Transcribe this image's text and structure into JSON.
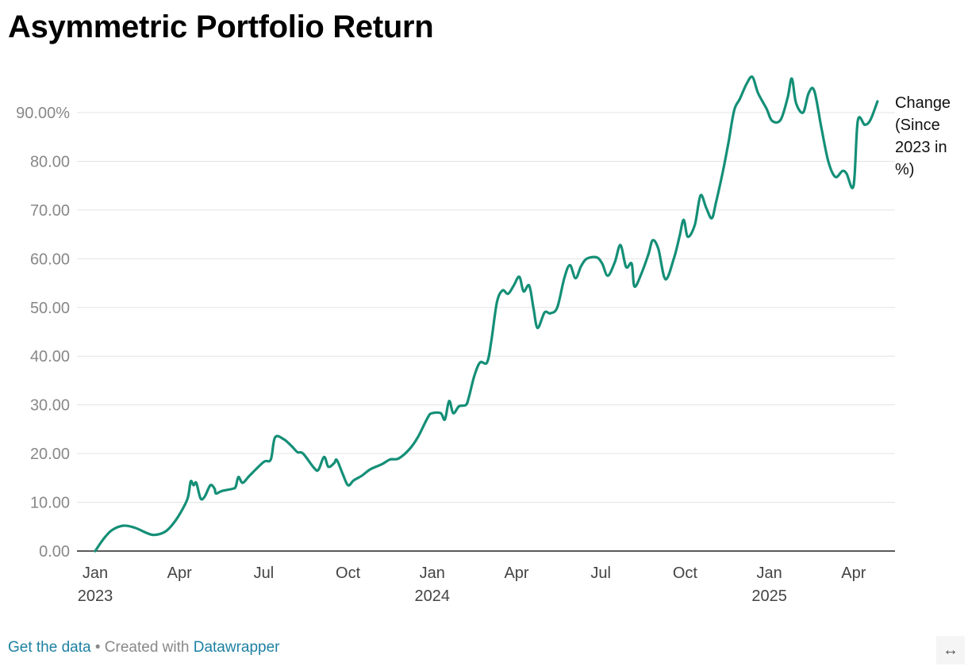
{
  "header": {
    "title": "Asymmetric Portfolio Return"
  },
  "footer": {
    "get_data": "Get the data",
    "separator": " • Created with ",
    "tool": "Datawrapper"
  },
  "expand_icon": "↔",
  "chart_data": {
    "type": "line",
    "title": "Asymmetric Portfolio Return",
    "ylabel": "",
    "xlabel": "",
    "ylim": [
      0,
      95
    ],
    "y_ticks": [
      0,
      10,
      20,
      30,
      40,
      50,
      60,
      70,
      80,
      90
    ],
    "y_tick_labels": [
      "0.00",
      "10.00",
      "20.00",
      "30.00",
      "40.00",
      "50.00",
      "60.00",
      "70.00",
      "80.00",
      "90.00%"
    ],
    "x_range": [
      0,
      28.3
    ],
    "x_unit": "months since Jan 2023",
    "x_ticks": [
      {
        "x": 0,
        "label": "Jan",
        "year": "2023"
      },
      {
        "x": 3,
        "label": "Apr",
        "year": ""
      },
      {
        "x": 6,
        "label": "Jul",
        "year": ""
      },
      {
        "x": 9,
        "label": "Oct",
        "year": ""
      },
      {
        "x": 12,
        "label": "Jan",
        "year": "2024"
      },
      {
        "x": 15,
        "label": "Apr",
        "year": ""
      },
      {
        "x": 18,
        "label": "Jul",
        "year": ""
      },
      {
        "x": 21,
        "label": "Oct",
        "year": ""
      },
      {
        "x": 24,
        "label": "Jan",
        "year": "2025"
      },
      {
        "x": 27,
        "label": "Apr",
        "year": ""
      }
    ],
    "series": [
      {
        "name": "Change (Since 2023 in %)",
        "label_lines": [
          "Change",
          "(Since",
          "2023 in",
          "%)"
        ],
        "color": "#148f77",
        "points": [
          [
            0.0,
            0.0
          ],
          [
            0.3,
            2.5
          ],
          [
            0.6,
            4.3
          ],
          [
            1.0,
            5.2
          ],
          [
            1.4,
            4.8
          ],
          [
            1.8,
            3.8
          ],
          [
            2.1,
            3.3
          ],
          [
            2.5,
            4.0
          ],
          [
            2.8,
            5.8
          ],
          [
            3.1,
            8.5
          ],
          [
            3.3,
            11.0
          ],
          [
            3.4,
            14.3
          ],
          [
            3.5,
            13.5
          ],
          [
            3.6,
            14.0
          ],
          [
            3.75,
            10.8
          ],
          [
            3.9,
            11.2
          ],
          [
            4.1,
            13.5
          ],
          [
            4.25,
            12.8
          ],
          [
            4.3,
            11.8
          ],
          [
            4.5,
            12.3
          ],
          [
            4.9,
            12.8
          ],
          [
            5.0,
            13.2
          ],
          [
            5.1,
            15.2
          ],
          [
            5.25,
            14.0
          ],
          [
            5.5,
            15.5
          ],
          [
            6.0,
            18.3
          ],
          [
            6.25,
            18.8
          ],
          [
            6.4,
            23.3
          ],
          [
            6.7,
            23.0
          ],
          [
            7.0,
            21.5
          ],
          [
            7.2,
            20.3
          ],
          [
            7.4,
            20.0
          ],
          [
            7.8,
            17.0
          ],
          [
            7.95,
            16.7
          ],
          [
            8.15,
            19.3
          ],
          [
            8.3,
            17.3
          ],
          [
            8.5,
            18.0
          ],
          [
            8.6,
            18.7
          ],
          [
            8.8,
            16.0
          ],
          [
            9.0,
            13.5
          ],
          [
            9.2,
            14.5
          ],
          [
            9.5,
            15.5
          ],
          [
            9.8,
            16.8
          ],
          [
            10.2,
            17.8
          ],
          [
            10.5,
            18.8
          ],
          [
            10.8,
            19.0
          ],
          [
            11.2,
            21.0
          ],
          [
            11.5,
            23.5
          ],
          [
            11.85,
            27.5
          ],
          [
            12.0,
            28.3
          ],
          [
            12.3,
            28.3
          ],
          [
            12.45,
            27.0
          ],
          [
            12.6,
            30.8
          ],
          [
            12.75,
            28.3
          ],
          [
            12.95,
            29.7
          ],
          [
            13.2,
            30.0
          ],
          [
            13.3,
            31.5
          ],
          [
            13.5,
            36.0
          ],
          [
            13.7,
            38.7
          ],
          [
            13.95,
            38.7
          ],
          [
            14.1,
            43.0
          ],
          [
            14.3,
            51.0
          ],
          [
            14.5,
            53.5
          ],
          [
            14.7,
            52.8
          ],
          [
            14.9,
            54.5
          ],
          [
            15.1,
            56.3
          ],
          [
            15.25,
            53.3
          ],
          [
            15.45,
            54.5
          ],
          [
            15.6,
            50.0
          ],
          [
            15.75,
            45.8
          ],
          [
            16.0,
            49.0
          ],
          [
            16.2,
            48.8
          ],
          [
            16.45,
            50.0
          ],
          [
            16.7,
            56.0
          ],
          [
            16.9,
            58.7
          ],
          [
            17.1,
            56.0
          ],
          [
            17.3,
            58.5
          ],
          [
            17.5,
            60.0
          ],
          [
            17.85,
            60.3
          ],
          [
            18.05,
            59.0
          ],
          [
            18.25,
            56.5
          ],
          [
            18.5,
            59.3
          ],
          [
            18.7,
            62.8
          ],
          [
            18.9,
            58.3
          ],
          [
            19.1,
            59.0
          ],
          [
            19.2,
            54.3
          ],
          [
            19.45,
            57.0
          ],
          [
            19.7,
            61.0
          ],
          [
            19.85,
            63.8
          ],
          [
            20.05,
            62.0
          ],
          [
            20.3,
            55.8
          ],
          [
            20.6,
            60.0
          ],
          [
            20.8,
            64.5
          ],
          [
            20.95,
            68.0
          ],
          [
            21.1,
            64.5
          ],
          [
            21.35,
            67.0
          ],
          [
            21.55,
            73.0
          ],
          [
            21.75,
            70.5
          ],
          [
            21.95,
            68.3
          ],
          [
            22.1,
            71.5
          ],
          [
            22.35,
            78.0
          ],
          [
            22.55,
            84.0
          ],
          [
            22.75,
            90.5
          ],
          [
            22.95,
            92.8
          ],
          [
            23.2,
            96.0
          ],
          [
            23.4,
            97.3
          ],
          [
            23.6,
            94.0
          ],
          [
            23.9,
            90.8
          ],
          [
            24.1,
            88.3
          ],
          [
            24.4,
            88.5
          ],
          [
            24.65,
            93.0
          ],
          [
            24.8,
            97.0
          ],
          [
            24.95,
            92.0
          ],
          [
            25.2,
            90.0
          ],
          [
            25.4,
            94.0
          ],
          [
            25.6,
            94.5
          ],
          [
            25.85,
            87.0
          ],
          [
            26.1,
            80.0
          ],
          [
            26.35,
            76.8
          ],
          [
            26.6,
            78.0
          ],
          [
            26.75,
            77.5
          ],
          [
            27.0,
            75.0
          ],
          [
            27.15,
            88.3
          ],
          [
            27.4,
            87.5
          ],
          [
            27.6,
            88.5
          ],
          [
            27.85,
            92.3
          ]
        ]
      }
    ]
  }
}
